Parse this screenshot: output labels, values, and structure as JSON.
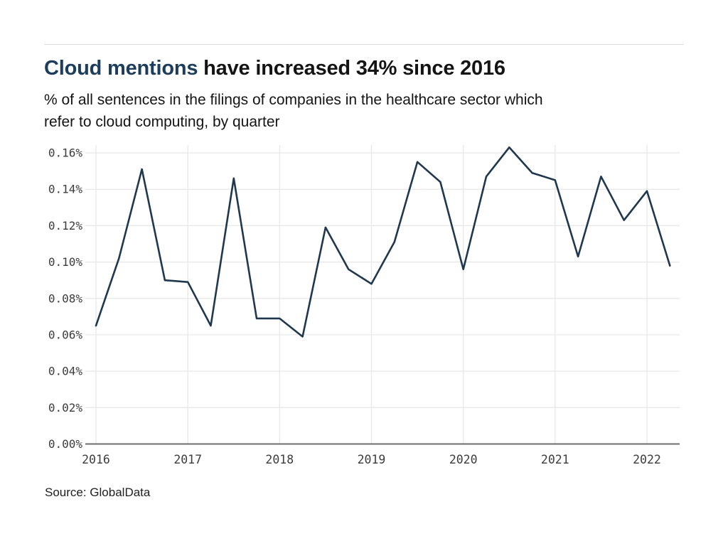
{
  "header": {
    "title_accent": "Cloud mentions",
    "title_rest": " have increased 34% since 2016",
    "subtitle_line1": "% of all sentences in the filings of companies in the healthcare sector which",
    "subtitle_line2": "refer to cloud computing, by quarter"
  },
  "footer": {
    "source": "Source: GlobalData"
  },
  "colors": {
    "title_accent": "#1d3d5c",
    "title_text": "#141414",
    "line": "#20384e",
    "grid": "#e8e8e8",
    "baseline": "#6e6e6e",
    "tick_text": "#3c3c3c"
  },
  "chart_data": {
    "type": "line",
    "title": "Cloud mentions have increased 34% since 2016",
    "subtitle": "% of all sentences in the filings of companies in the healthcare sector which refer to cloud computing, by quarter",
    "xlabel": "",
    "ylabel": "",
    "legend": "none",
    "grid": true,
    "ylim": [
      0,
      0.16
    ],
    "x": [
      "2016 Q1",
      "2016 Q2",
      "2016 Q3",
      "2016 Q4",
      "2017 Q1",
      "2017 Q2",
      "2017 Q3",
      "2017 Q4",
      "2018 Q1",
      "2018 Q2",
      "2018 Q3",
      "2018 Q4",
      "2019 Q1",
      "2019 Q2",
      "2019 Q3",
      "2019 Q4",
      "2020 Q1",
      "2020 Q2",
      "2020 Q3",
      "2020 Q4",
      "2021 Q1",
      "2021 Q2",
      "2021 Q3",
      "2021 Q4",
      "2022 Q1",
      "2022 Q2"
    ],
    "values": [
      0.065,
      0.102,
      0.151,
      0.09,
      0.089,
      0.065,
      0.146,
      0.069,
      0.069,
      0.059,
      0.119,
      0.096,
      0.088,
      0.111,
      0.155,
      0.144,
      0.096,
      0.147,
      0.163,
      0.149,
      0.145,
      0.103,
      0.147,
      0.123,
      0.139,
      0.098
    ],
    "y_ticks": [
      0.0,
      0.02,
      0.04,
      0.06,
      0.08,
      0.1,
      0.12,
      0.14,
      0.16
    ],
    "y_tick_labels": [
      "0.00%",
      "0.02%",
      "0.04%",
      "0.06%",
      "0.08%",
      "0.10%",
      "0.12%",
      "0.14%",
      "0.16%"
    ],
    "x_tick_positions": [
      0,
      4,
      8,
      12,
      16,
      20,
      24
    ],
    "x_tick_labels": [
      "2016",
      "2017",
      "2018",
      "2019",
      "2020",
      "2021",
      "2022"
    ]
  }
}
